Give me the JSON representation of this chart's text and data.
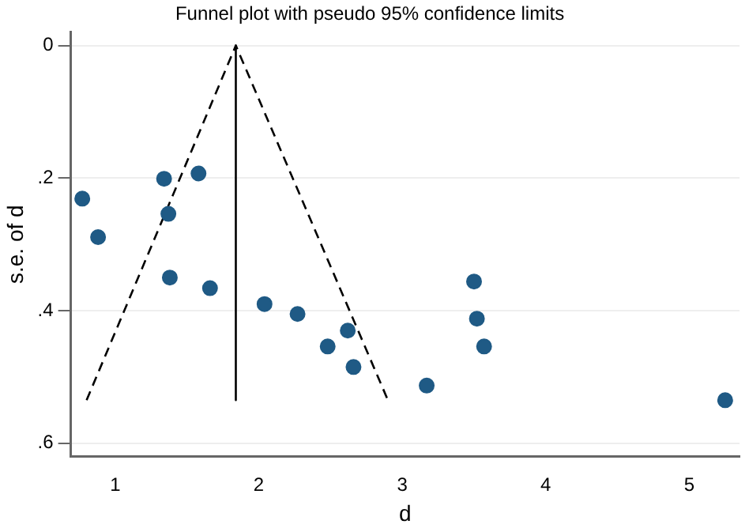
{
  "chart_data": {
    "type": "scatter",
    "title": "Funnel plot with pseudo 95% confidence limits",
    "xlabel": "d",
    "ylabel": "s.e. of d",
    "xlim": [
      0.69,
      5.35
    ],
    "xticks": [
      1,
      2,
      3,
      4,
      5
    ],
    "ylim": [
      0.62,
      -0.02
    ],
    "yticks": [
      {
        "value": 0,
        "label": "0"
      },
      {
        "value": 0.2,
        "label": ".2"
      },
      {
        "value": 0.4,
        "label": ".4"
      },
      {
        "value": 0.6,
        "label": ".6"
      }
    ],
    "grid": "y",
    "legend": false,
    "series": [
      {
        "type": "scatter",
        "marker": "circle",
        "color": "#1f5a85",
        "x": [
          0.77,
          0.88,
          1.34,
          1.58,
          1.37,
          1.38,
          1.66,
          2.04,
          2.27,
          2.62,
          2.48,
          2.66,
          3.5,
          3.52,
          3.57,
          3.17,
          5.25
        ],
        "values": [
          0.231,
          0.289,
          0.201,
          0.193,
          0.254,
          0.35,
          0.366,
          0.39,
          0.405,
          0.43,
          0.454,
          0.485,
          0.356,
          0.412,
          0.454,
          0.513,
          0.535
        ]
      },
      {
        "type": "line",
        "marker": "none",
        "line_style": "dashed",
        "color": "#000000",
        "x": [
          0.8,
          1.84,
          2.9
        ],
        "values": [
          0.535,
          0,
          0.535
        ]
      },
      {
        "type": "line",
        "marker": "none",
        "line_style": "solid",
        "color": "#000000",
        "x": [
          1.84,
          1.84
        ],
        "values": [
          0,
          0.535
        ]
      }
    ]
  }
}
